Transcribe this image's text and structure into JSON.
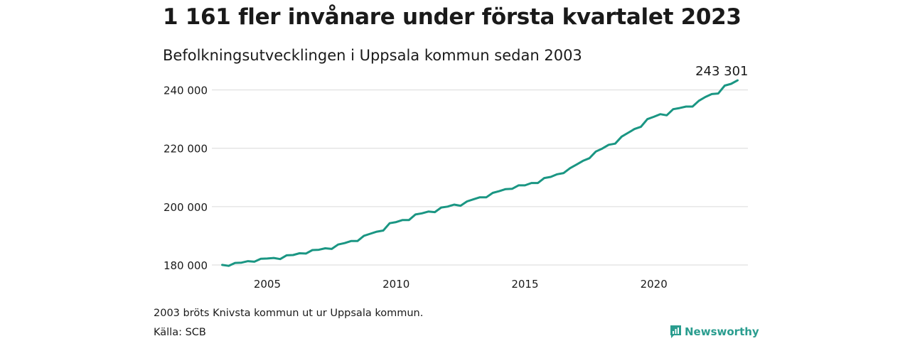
{
  "header": {
    "title": "1 161 fler invånare under första kvartalet 2023",
    "subtitle": "Befolkningsutvecklingen i Uppsala kommun sedan 2003"
  },
  "footer": {
    "note": "2003 bröts Knivsta kommun ut ur Uppsala kommun.",
    "source": "Källa: SCB",
    "brand": "Newsworthy"
  },
  "colors": {
    "line": "#1a9683",
    "grid": "#d9d9d9",
    "brand": "#2a9d8f"
  },
  "brand_icon": "newsworthy-logo-icon",
  "chart_data": {
    "type": "line",
    "title": "1 161 fler invånare under första kvartalet 2023",
    "subtitle": "Befolkningsutvecklingen i Uppsala kommun sedan 2003",
    "xlabel": "",
    "ylabel": "",
    "xlim": [
      2002.85,
      2023.65
    ],
    "ylim": [
      179500,
      246000
    ],
    "grid": true,
    "x_ticks": [
      2005,
      2010,
      2015,
      2020
    ],
    "x_tick_labels": [
      "2005",
      "2010",
      "2015",
      "2020"
    ],
    "y_ticks": [
      180000,
      200000,
      220000,
      240000
    ],
    "y_tick_labels": [
      "180 000",
      "200 000",
      "220 000",
      "240 000"
    ],
    "annotations": [
      {
        "x": 2023.25,
        "y": 243301,
        "text": "243 301"
      }
    ],
    "series": [
      {
        "x": [
          2003.25,
          2003.5,
          2003.75,
          2004.0,
          2004.25,
          2004.5,
          2004.75,
          2005.0,
          2005.25,
          2005.5,
          2005.75,
          2006.0,
          2006.25,
          2006.5,
          2006.75,
          2007.0,
          2007.25,
          2007.5,
          2007.75,
          2008.0,
          2008.25,
          2008.5,
          2008.75,
          2009.0,
          2009.25,
          2009.5,
          2009.75,
          2010.0,
          2010.25,
          2010.5,
          2010.75,
          2011.0,
          2011.25,
          2011.5,
          2011.75,
          2012.0,
          2012.25,
          2012.5,
          2012.75,
          2013.0,
          2013.25,
          2013.5,
          2013.75,
          2014.0,
          2014.25,
          2014.5,
          2014.75,
          2015.0,
          2015.25,
          2015.5,
          2015.75,
          2016.0,
          2016.25,
          2016.5,
          2016.75,
          2017.0,
          2017.25,
          2017.5,
          2017.75,
          2018.0,
          2018.25,
          2018.5,
          2018.75,
          2019.0,
          2019.25,
          2019.5,
          2019.75,
          2020.0,
          2020.25,
          2020.5,
          2020.75,
          2021.0,
          2021.25,
          2021.5,
          2021.75,
          2022.0,
          2022.25,
          2022.5,
          2022.75,
          2023.0,
          2023.25
        ],
        "values": [
          180000,
          179700,
          180700,
          180800,
          181300,
          181100,
          182100,
          182200,
          182400,
          182000,
          183300,
          183400,
          184000,
          183900,
          185100,
          185200,
          185700,
          185500,
          187000,
          187500,
          188200,
          188200,
          190000,
          190700,
          191400,
          191800,
          194300,
          194700,
          195400,
          195400,
          197300,
          197700,
          198300,
          198100,
          199700,
          200000,
          200700,
          200300,
          201800,
          202500,
          203200,
          203200,
          204700,
          205300,
          206000,
          206100,
          207300,
          207300,
          208100,
          208100,
          209800,
          210200,
          211100,
          211500,
          213200,
          214400,
          215700,
          216600,
          218900,
          219900,
          221200,
          221600,
          224000,
          225300,
          226600,
          227400,
          230000,
          230800,
          231700,
          231300,
          233400,
          233800,
          234300,
          234300,
          236300,
          237600,
          238600,
          238800,
          241500,
          242100,
          243301
        ]
      }
    ]
  }
}
